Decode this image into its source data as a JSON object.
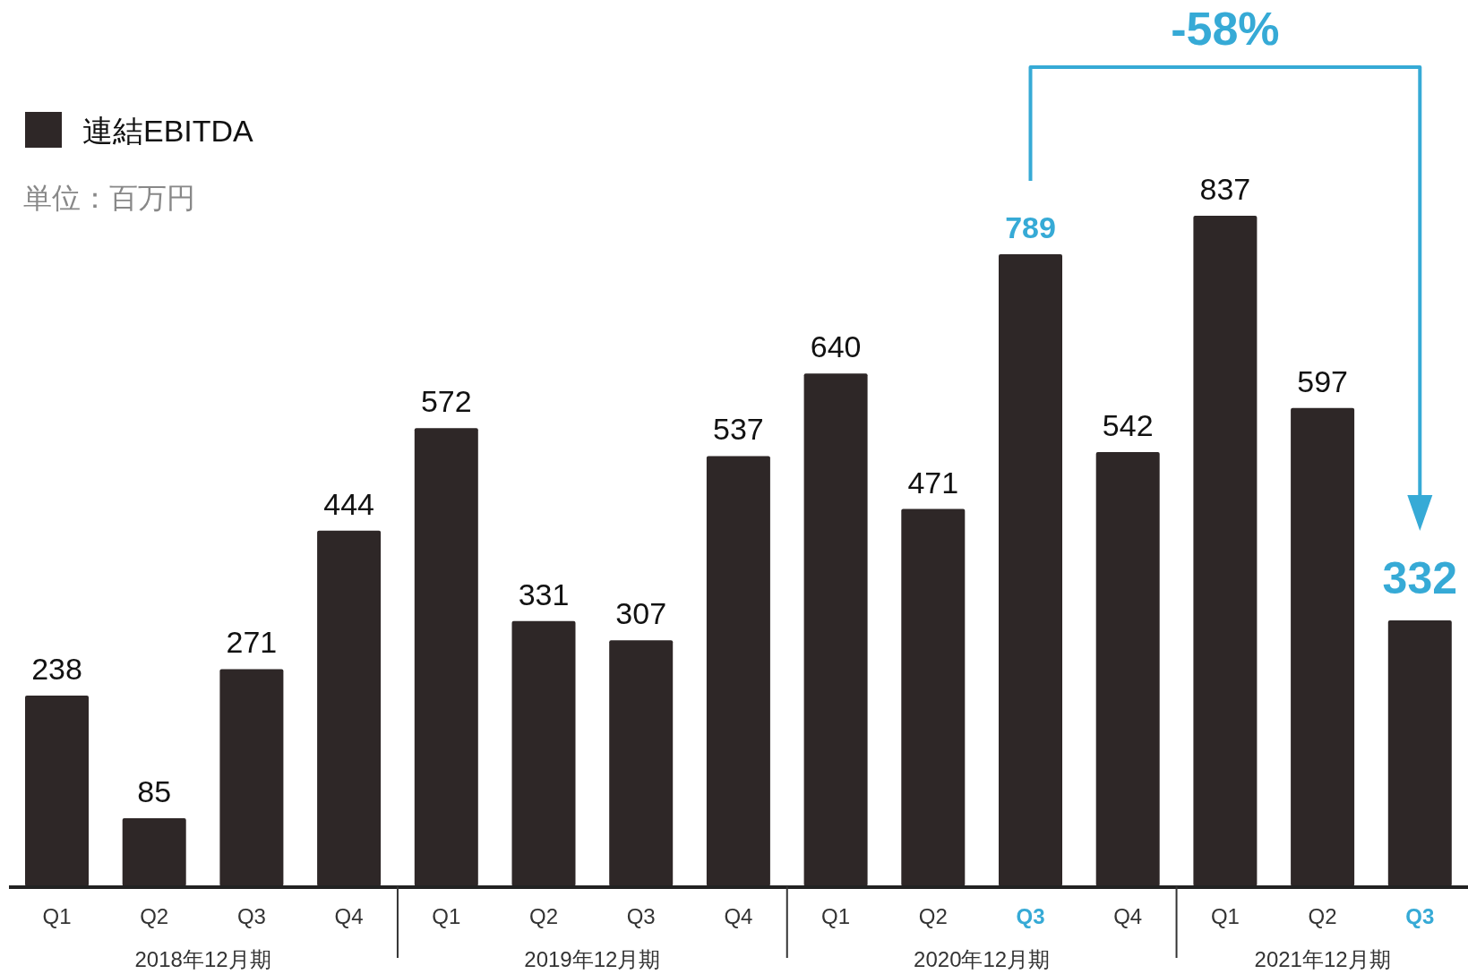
{
  "chart_data": {
    "type": "bar",
    "data_labels": true,
    "legend": "top left",
    "categories": [
      "Q1",
      "Q2",
      "Q3",
      "Q4",
      "Q1",
      "Q2",
      "Q3",
      "Q4",
      "Q1",
      "Q2",
      "Q3",
      "Q4",
      "Q1",
      "Q2",
      "Q3"
    ],
    "series": [
      {
        "name": "連結EBITDA",
        "color": "#2e2727",
        "values": [
          238,
          85,
          271,
          444,
          572,
          331,
          307,
          537,
          640,
          471,
          789,
          542,
          837,
          597,
          332
        ]
      }
    ],
    "annotations": [
      "単位：百万円",
      "-58%",
      "2018年12月期",
      "2019年12月期",
      "2020年12月期",
      "2021年12月期"
    ]
  }
}
